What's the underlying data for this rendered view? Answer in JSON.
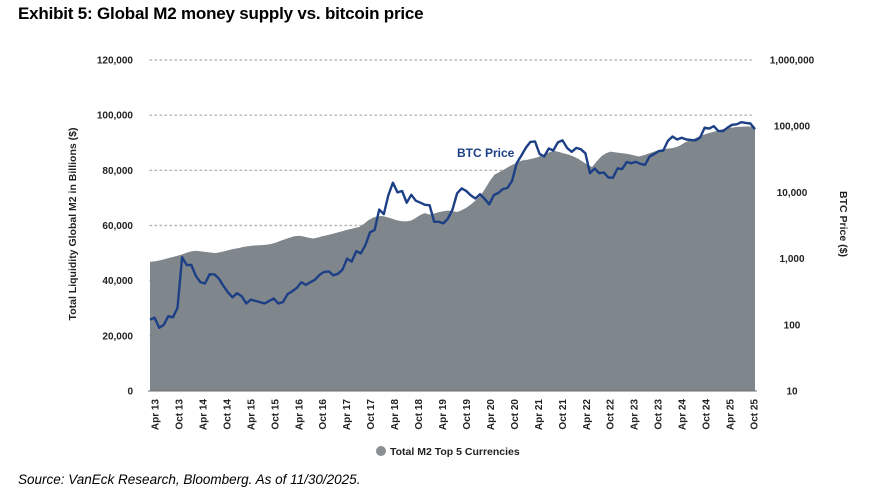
{
  "title": "Exhibit 5: Global M2 money supply vs. bitcoin price",
  "source": "Source: VanEck Research, Bloomberg. As of 11/30/2025.",
  "colors": {
    "m2_fill": "#7f868c",
    "btc_line": "#1c3f86",
    "grid": "#b5b5b5",
    "legend_marker": "#8a8f94"
  },
  "chart_data": {
    "type": "area",
    "title": "Exhibit 5: Global M2 money supply vs. bitcoin price",
    "categories": [
      "Apr 13",
      "Oct 13",
      "Apr 14",
      "Oct 14",
      "Apr 15",
      "Oct 15",
      "Apr 16",
      "Oct 16",
      "Apr 17",
      "Oct 17",
      "Apr 18",
      "Oct 18",
      "Apr 19",
      "Oct 19",
      "Apr 20",
      "Oct 20",
      "Apr 21",
      "Oct 21",
      "Apr 22",
      "Oct 22",
      "Apr 23",
      "Oct 23",
      "Apr 24",
      "Oct 24",
      "Apr 25",
      "Oct 25"
    ],
    "ylabel": "Total Liquidity Global M2 in Billions ($)",
    "y2label": "BTC Price ($)",
    "ylim": [
      0,
      120000
    ],
    "y_ticks": [
      "0",
      "20,000",
      "40,000",
      "60,000",
      "80,000",
      "100,000",
      "120,000"
    ],
    "y_tick_values": [
      0,
      20000,
      40000,
      60000,
      80000,
      100000,
      120000
    ],
    "y2lim": [
      10,
      1000000
    ],
    "y2_scale": "log",
    "y2_ticks": [
      "10",
      "100",
      "1,000",
      "10,000",
      "100,000",
      "1,000,000"
    ],
    "y2_tick_values": [
      10,
      100,
      1000,
      10000,
      100000,
      1000000
    ],
    "grid": "horizontal dotted",
    "legend": {
      "position": "bottom",
      "label": "Total M2 Top 5 Currencies"
    },
    "series": [
      {
        "name": "Total M2 Top 5 Currencies",
        "kind": "area",
        "axis": "left",
        "values": [
          46800,
          48600,
          50700,
          50000,
          52200,
          53000,
          55600,
          55300,
          57300,
          59500,
          63400,
          61500,
          64000,
          65200,
          69200,
          79300,
          83600,
          85800,
          85700,
          81200,
          86500,
          85000,
          87600,
          90200,
          93500,
          95500
        ],
        "samples": [
          46800,
          47000,
          47300,
          47700,
          48200,
          48600,
          49100,
          49600,
          50200,
          50700,
          50800,
          50600,
          50400,
          50200,
          50000,
          50300,
          50700,
          51100,
          51500,
          51800,
          52200,
          52500,
          52700,
          52800,
          52900,
          53000,
          53300,
          53800,
          54400,
          55000,
          55600,
          56100,
          56300,
          56000,
          55600,
          55300,
          55600,
          56100,
          56500,
          56900,
          57300,
          57800,
          58300,
          58700,
          59100,
          59500,
          60600,
          62000,
          62900,
          63400,
          63400,
          63000,
          62500,
          61900,
          61600,
          61500,
          61700,
          62600,
          63700,
          64500,
          64000,
          64300,
          64800,
          65200,
          65400,
          65200,
          64900,
          65600,
          66500,
          67700,
          69200,
          70800,
          73300,
          76100,
          78400,
          79300,
          80200,
          81200,
          82100,
          82900,
          83600,
          83800,
          84200,
          84600,
          85200,
          85800,
          86700,
          87000,
          86600,
          86100,
          85700,
          85000,
          84200,
          83100,
          82000,
          81200,
          83300,
          85100,
          86200,
          86800,
          86500,
          86300,
          86100,
          85800,
          85400,
          85000,
          85400,
          86000,
          86600,
          87200,
          87600,
          87800,
          88000,
          88400,
          89100,
          90200,
          90800,
          91500,
          92300,
          92900,
          93500,
          93900,
          94400,
          94900,
          95300,
          95500,
          95700,
          95800,
          95900,
          95900,
          95900
        ]
      },
      {
        "name": "BTC Price",
        "kind": "line",
        "axis": "right",
        "label": "BTC Price",
        "values": [
          120,
          700,
          450,
          330,
          240,
          290,
          430,
          620,
          1200,
          5000,
          8000,
          6500,
          5200,
          8500,
          7000,
          11500,
          58000,
          61000,
          39000,
          19500,
          29000,
          35000,
          70000,
          68000,
          95000,
          110000
        ],
        "samples": [
          120,
          128,
          90,
          100,
          135,
          130,
          180,
          1050,
          800,
          800,
          550,
          440,
          420,
          580,
          580,
          500,
          390,
          310,
          260,
          300,
          270,
          210,
          240,
          230,
          220,
          210,
          230,
          250,
          210,
          220,
          290,
          320,
          360,
          440,
          400,
          440,
          480,
          570,
          630,
          640,
          560,
          590,
          680,
          1000,
          900,
          1300,
          1200,
          1600,
          2500,
          2700,
          5500,
          4700,
          9000,
          14000,
          10000,
          10500,
          7000,
          9200,
          7500,
          7000,
          6500,
          6400,
          3600,
          3600,
          3400,
          4000,
          5500,
          9700,
          11500,
          10500,
          9000,
          8100,
          9400,
          8000,
          6600,
          9100,
          9800,
          11200,
          11700,
          15000,
          27500,
          36000,
          47000,
          58000,
          59000,
          38000,
          35000,
          46000,
          43000,
          57000,
          61000,
          47000,
          41000,
          47000,
          45000,
          39000,
          19500,
          23000,
          19500,
          20000,
          16800,
          16600,
          23000,
          22500,
          28800,
          27500,
          29000,
          27000,
          26000,
          35000,
          38000,
          42000,
          43000,
          60000,
          70000,
          63000,
          67000,
          63000,
          62000,
          61000,
          67000,
          95000,
          92000,
          100000,
          85000,
          84000,
          95000,
          105000,
          107000,
          115000,
          112000,
          110000,
          90000
        ]
      }
    ]
  }
}
